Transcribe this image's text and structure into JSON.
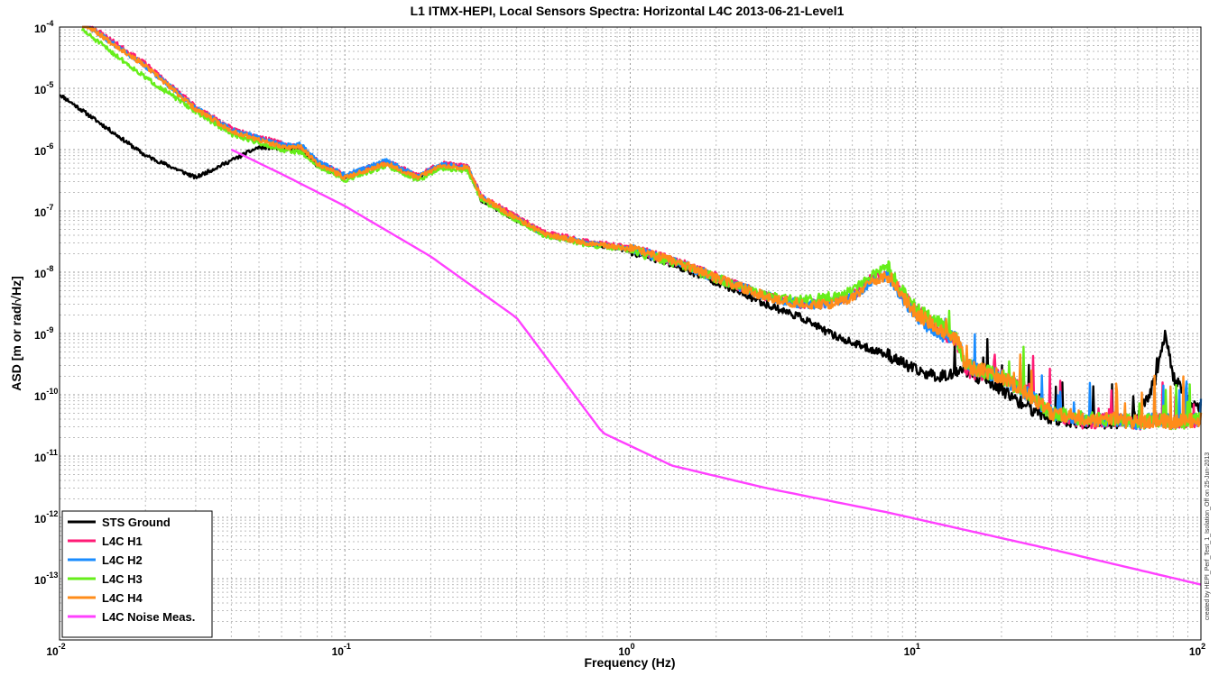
{
  "chart_data": {
    "type": "line",
    "title": "L1 ITMX-HEPI, Local Sensors Spectra:  Horizontal L4C 2013-06-21-Level1",
    "xlabel": "Frequency (Hz)",
    "ylabel": "ASD [m or rad/√Hz]",
    "xscale": "log",
    "yscale": "log",
    "xlim": [
      0.01,
      100
    ],
    "ylim": [
      1e-14,
      0.0001
    ],
    "grid": true,
    "legend_position": "bottom-left",
    "x_ticks": [
      {
        "base": "10",
        "exp": "-2"
      },
      {
        "base": "10",
        "exp": "-1"
      },
      {
        "base": "10",
        "exp": "0"
      },
      {
        "base": "10",
        "exp": "1"
      },
      {
        "base": "10",
        "exp": "2"
      }
    ],
    "y_ticks": [
      {
        "base": "10",
        "exp": "-4"
      },
      {
        "base": "10",
        "exp": "-5"
      },
      {
        "base": "10",
        "exp": "-6"
      },
      {
        "base": "10",
        "exp": "-7"
      },
      {
        "base": "10",
        "exp": "-8"
      },
      {
        "base": "10",
        "exp": "-9"
      },
      {
        "base": "10",
        "exp": "-10"
      },
      {
        "base": "10",
        "exp": "-11"
      },
      {
        "base": "10",
        "exp": "-12"
      },
      {
        "base": "10",
        "exp": "-13"
      }
    ],
    "side_note": "created by HEPI_Perf_Test_1_Isolation_Off on 25-Jun-2013",
    "series": [
      {
        "name": "STS Ground",
        "color": "#000000",
        "seed": 11,
        "jitter": 0.09,
        "anchors": [
          [
            0.01,
            8e-06
          ],
          [
            0.02,
            8e-07
          ],
          [
            0.03,
            3.5e-07
          ],
          [
            0.05,
            1.1e-06
          ],
          [
            0.07,
            1e-06
          ],
          [
            0.08,
            5.5e-07
          ],
          [
            0.1,
            3.5e-07
          ],
          [
            0.14,
            6.2e-07
          ],
          [
            0.18,
            3.5e-07
          ],
          [
            0.22,
            5.5e-07
          ],
          [
            0.27,
            5e-07
          ],
          [
            0.3,
            1.5e-07
          ],
          [
            0.4,
            7e-08
          ],
          [
            0.5,
            4e-08
          ],
          [
            0.7,
            3e-08
          ],
          [
            1,
            2.2e-08
          ],
          [
            1.5,
            1.2e-08
          ],
          [
            2,
            7e-09
          ],
          [
            3,
            3e-09
          ],
          [
            4,
            1.8e-09
          ],
          [
            5,
            1e-09
          ],
          [
            6,
            7e-10
          ],
          [
            8,
            4.5e-10
          ],
          [
            10,
            2.5e-10
          ],
          [
            12,
            2e-10
          ],
          [
            15,
            2.5e-10
          ],
          [
            20,
            1.2e-10
          ],
          [
            25,
            6e-11
          ],
          [
            30,
            4e-11
          ],
          [
            40,
            3.5e-11
          ],
          [
            50,
            3.5e-11
          ],
          [
            60,
            4e-11
          ],
          [
            70,
            2e-10
          ],
          [
            75,
            1.1e-09
          ],
          [
            80,
            2e-10
          ],
          [
            90,
            8e-11
          ],
          [
            100,
            6e-11
          ]
        ]
      },
      {
        "name": "L4C H1",
        "color": "#ff1a75",
        "seed": 23,
        "jitter": 0.11,
        "anchors": [
          [
            0.012,
            0.00013
          ],
          [
            0.02,
            2.5e-05
          ],
          [
            0.03,
            5e-06
          ],
          [
            0.04,
            2.2e-06
          ],
          [
            0.06,
            1.25e-06
          ],
          [
            0.07,
            1.1e-06
          ],
          [
            0.08,
            6.5e-07
          ],
          [
            0.1,
            3.8e-07
          ],
          [
            0.14,
            6.5e-07
          ],
          [
            0.18,
            3.8e-07
          ],
          [
            0.22,
            6e-07
          ],
          [
            0.27,
            5.2e-07
          ],
          [
            0.3,
            1.8e-07
          ],
          [
            0.4,
            8e-08
          ],
          [
            0.5,
            4.5e-08
          ],
          [
            0.7,
            3.2e-08
          ],
          [
            1,
            2.5e-08
          ],
          [
            1.5,
            1.4e-08
          ],
          [
            2,
            8.5e-09
          ],
          [
            3,
            4e-09
          ],
          [
            4,
            3e-09
          ],
          [
            5,
            3.2e-09
          ],
          [
            6,
            4e-09
          ],
          [
            7,
            8e-09
          ],
          [
            8,
            1e-08
          ],
          [
            9,
            4e-09
          ],
          [
            10,
            2.5e-09
          ],
          [
            12,
            1.2e-09
          ],
          [
            14,
            7e-10
          ],
          [
            15,
            2.5e-10
          ],
          [
            20,
            2e-10
          ],
          [
            25,
            1.2e-10
          ],
          [
            30,
            5e-11
          ],
          [
            40,
            3.5e-11
          ],
          [
            50,
            4e-11
          ],
          [
            60,
            3.5e-11
          ],
          [
            70,
            4e-11
          ],
          [
            80,
            3.5e-11
          ],
          [
            100,
            4e-11
          ]
        ]
      },
      {
        "name": "L4C H2",
        "color": "#1a8cff",
        "seed": 37,
        "jitter": 0.11,
        "anchors": [
          [
            0.012,
            0.00012
          ],
          [
            0.02,
            2.3e-05
          ],
          [
            0.03,
            4.8e-06
          ],
          [
            0.04,
            2.1e-06
          ],
          [
            0.06,
            1.2e-06
          ],
          [
            0.07,
            1.2e-06
          ],
          [
            0.08,
            6.5e-07
          ],
          [
            0.1,
            3.8e-07
          ],
          [
            0.14,
            6.6e-07
          ],
          [
            0.18,
            3.6e-07
          ],
          [
            0.22,
            5.8e-07
          ],
          [
            0.27,
            5e-07
          ],
          [
            0.3,
            1.7e-07
          ],
          [
            0.4,
            7.5e-08
          ],
          [
            0.5,
            4.2e-08
          ],
          [
            0.7,
            3e-08
          ],
          [
            1,
            2.4e-08
          ],
          [
            1.5,
            1.4e-08
          ],
          [
            2,
            8e-09
          ],
          [
            3,
            4e-09
          ],
          [
            4,
            3e-09
          ],
          [
            5,
            3e-09
          ],
          [
            6,
            3.8e-09
          ],
          [
            7,
            7e-09
          ],
          [
            8,
            9e-09
          ],
          [
            9,
            4e-09
          ],
          [
            10,
            2e-09
          ],
          [
            12,
            1e-09
          ],
          [
            14,
            8e-10
          ],
          [
            15,
            3e-10
          ],
          [
            20,
            2e-10
          ],
          [
            25,
            1e-10
          ],
          [
            30,
            5e-11
          ],
          [
            40,
            4e-11
          ],
          [
            50,
            4e-11
          ],
          [
            60,
            3.5e-11
          ],
          [
            70,
            4e-11
          ],
          [
            80,
            3.5e-11
          ],
          [
            100,
            4e-11
          ]
        ]
      },
      {
        "name": "L4C H3",
        "color": "#66ee1a",
        "seed": 51,
        "jitter": 0.11,
        "anchors": [
          [
            0.012,
            9e-05
          ],
          [
            0.02,
            1.5e-05
          ],
          [
            0.03,
            4.2e-06
          ],
          [
            0.04,
            1.8e-06
          ],
          [
            0.06,
            1e-06
          ],
          [
            0.07,
            9e-07
          ],
          [
            0.08,
            5.5e-07
          ],
          [
            0.1,
            3.2e-07
          ],
          [
            0.14,
            5.5e-07
          ],
          [
            0.18,
            3.2e-07
          ],
          [
            0.22,
            5e-07
          ],
          [
            0.27,
            4.5e-07
          ],
          [
            0.3,
            1.5e-07
          ],
          [
            0.4,
            7e-08
          ],
          [
            0.5,
            4e-08
          ],
          [
            0.7,
            2.8e-08
          ],
          [
            1,
            2.3e-08
          ],
          [
            1.5,
            1.3e-08
          ],
          [
            2,
            8e-09
          ],
          [
            3,
            4e-09
          ],
          [
            4,
            3.5e-09
          ],
          [
            5,
            4e-09
          ],
          [
            6,
            5e-09
          ],
          [
            7,
            9e-09
          ],
          [
            8,
            1.2e-08
          ],
          [
            9,
            5e-09
          ],
          [
            10,
            2.5e-09
          ],
          [
            12,
            1.5e-09
          ],
          [
            14,
            8e-10
          ],
          [
            15,
            3e-10
          ],
          [
            20,
            2e-10
          ],
          [
            25,
            1e-10
          ],
          [
            30,
            5e-11
          ],
          [
            40,
            4e-11
          ],
          [
            50,
            4e-11
          ],
          [
            60,
            3.5e-11
          ],
          [
            70,
            4e-11
          ],
          [
            80,
            3.5e-11
          ],
          [
            100,
            4e-11
          ]
        ]
      },
      {
        "name": "L4C H4",
        "color": "#ff8c1a",
        "seed": 67,
        "jitter": 0.11,
        "anchors": [
          [
            0.012,
            0.00012
          ],
          [
            0.02,
            2.3e-05
          ],
          [
            0.03,
            4.6e-06
          ],
          [
            0.04,
            2e-06
          ],
          [
            0.06,
            1.1e-06
          ],
          [
            0.07,
            1.1e-06
          ],
          [
            0.08,
            6e-07
          ],
          [
            0.1,
            3.5e-07
          ],
          [
            0.14,
            6e-07
          ],
          [
            0.18,
            3.5e-07
          ],
          [
            0.22,
            5.6e-07
          ],
          [
            0.27,
            5e-07
          ],
          [
            0.3,
            1.7e-07
          ],
          [
            0.4,
            7.5e-08
          ],
          [
            0.5,
            4.2e-08
          ],
          [
            0.7,
            3e-08
          ],
          [
            1,
            2.4e-08
          ],
          [
            1.5,
            1.4e-08
          ],
          [
            2,
            8e-09
          ],
          [
            3,
            4e-09
          ],
          [
            4,
            3e-09
          ],
          [
            5,
            3e-09
          ],
          [
            6,
            3.8e-09
          ],
          [
            7,
            7e-09
          ],
          [
            8,
            9e-09
          ],
          [
            9,
            4e-09
          ],
          [
            10,
            2.2e-09
          ],
          [
            12,
            1.2e-09
          ],
          [
            14,
            8e-10
          ],
          [
            15,
            3e-10
          ],
          [
            20,
            2e-10
          ],
          [
            25,
            1e-10
          ],
          [
            30,
            5e-11
          ],
          [
            40,
            4e-11
          ],
          [
            50,
            4e-11
          ],
          [
            60,
            3.5e-11
          ],
          [
            70,
            4e-11
          ],
          [
            80,
            3.5e-11
          ],
          [
            100,
            4e-11
          ]
        ]
      },
      {
        "name": "L4C Noise Meas.",
        "color": "#ff40ff",
        "seed": 0,
        "jitter": 0,
        "anchors": [
          [
            0.04,
            1e-06
          ],
          [
            0.06,
            4e-07
          ],
          [
            0.1,
            1.2e-07
          ],
          [
            0.2,
            1.8e-08
          ],
          [
            0.4,
            1.8e-09
          ],
          [
            0.8,
            2.4e-11
          ],
          [
            1.4,
            7e-12
          ],
          [
            3,
            3e-12
          ],
          [
            8,
            1.2e-12
          ],
          [
            30,
            3e-13
          ],
          [
            100,
            8e-14
          ]
        ]
      }
    ]
  }
}
